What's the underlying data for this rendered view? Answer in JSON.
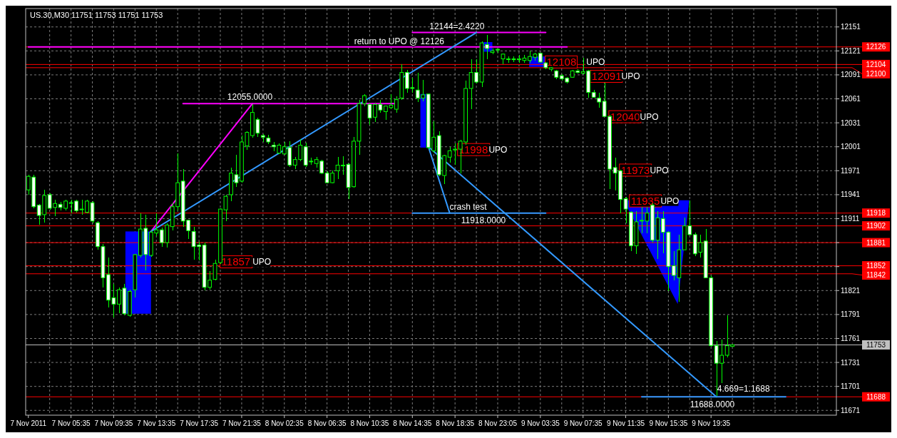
{
  "chart_data": {
    "type": "candlestick",
    "title": "US.30,M30 11751 11753 11751 11753",
    "categories": [
      "7 Nov 2011",
      null,
      null,
      null,
      null,
      null,
      null,
      null,
      "7 Nov 05:35",
      null,
      null,
      null,
      null,
      null,
      null,
      null,
      "7 Nov 09:35",
      null,
      null,
      null,
      null,
      null,
      null,
      null,
      "7 Nov 13:35",
      null,
      null,
      null,
      null,
      null,
      null,
      null,
      "7 Nov 17:35",
      null,
      null,
      null,
      null,
      null,
      null,
      null,
      "7 Nov 21:35",
      null,
      null,
      null,
      null,
      null,
      null,
      null,
      "8 Nov 02:35",
      null,
      null,
      null,
      null,
      null,
      null,
      null,
      "8 Nov 06:35",
      null,
      null,
      null,
      null,
      null,
      null,
      null,
      "8 Nov 10:35",
      null,
      null,
      null,
      null,
      null,
      null,
      null,
      "8 Nov 14:35",
      null,
      null,
      null,
      null,
      null,
      null,
      null,
      "8 Nov 18:35",
      null,
      null,
      null,
      null,
      null,
      null,
      null,
      "8 Nov 23:05",
      null,
      null,
      null,
      null,
      null,
      null,
      null,
      "9 Nov 03:35",
      null,
      null,
      null,
      null,
      null,
      null,
      null,
      "9 Nov 07:35",
      null,
      null,
      null,
      null,
      null,
      null,
      null,
      "9 Nov 11:35",
      null,
      null,
      null,
      null,
      null,
      null,
      null,
      "9 Nov 15:35",
      null,
      null,
      null,
      null,
      null,
      null,
      null,
      "9 Nov 19:35",
      null,
      null,
      null,
      null,
      null,
      null,
      null,
      null,
      null,
      null,
      null,
      null,
      null,
      null,
      null,
      null,
      null,
      null,
      null,
      null,
      null,
      null,
      null
    ],
    "ohlc": [
      [
        11947,
        11966,
        11941,
        11964
      ],
      [
        11963,
        11966,
        11924,
        11926
      ],
      [
        11928,
        11929,
        11903,
        11915
      ],
      [
        11916,
        11947,
        11906,
        11940
      ],
      [
        11941,
        11943,
        11922,
        11924
      ],
      [
        11925,
        11935,
        11914,
        11930
      ],
      [
        11929,
        11932,
        11921,
        11925
      ],
      [
        11924,
        11935,
        11921,
        11933
      ],
      [
        11931,
        11935,
        11918,
        11931
      ],
      [
        11933,
        11935,
        11919,
        11921
      ],
      [
        11923,
        11935,
        11916,
        11923
      ],
      [
        11919,
        11935,
        11918,
        11933
      ],
      [
        11931,
        11933,
        11905,
        11908
      ],
      [
        11906,
        11908,
        11872,
        11876
      ],
      [
        11876,
        11879,
        11825,
        11837
      ],
      [
        11841,
        11862,
        11800,
        11809
      ],
      [
        11812,
        11829,
        11787,
        11804
      ],
      [
        11804,
        11825,
        11793,
        11822
      ],
      [
        11824,
        11829,
        11790,
        11792
      ],
      [
        11790,
        11822,
        11788,
        11820
      ],
      [
        11822,
        11867,
        11812,
        11866
      ],
      [
        11865,
        11918,
        11862,
        11898
      ],
      [
        11899,
        11916,
        11846,
        11866
      ],
      [
        11865,
        11896,
        11863,
        11894
      ],
      [
        11893,
        11918,
        11889,
        11897
      ],
      [
        11897,
        11900,
        11876,
        11881
      ],
      [
        11881,
        11905,
        11875,
        11903
      ],
      [
        11901,
        11931,
        11896,
        11926
      ],
      [
        11926,
        11993,
        11921,
        11956
      ],
      [
        11958,
        11973,
        11901,
        11908
      ],
      [
        11909,
        11910,
        11886,
        11896
      ],
      [
        11895,
        11901,
        11860,
        11876
      ],
      [
        11878,
        11882,
        11859,
        11876
      ],
      [
        11878,
        11881,
        11821,
        11825
      ],
      [
        11825,
        11845,
        11822,
        11834
      ],
      [
        11835,
        11860,
        11834,
        11855
      ],
      [
        11856,
        11924,
        11854,
        11923
      ],
      [
        11922,
        11941,
        11908,
        11939
      ],
      [
        11941,
        11975,
        11933,
        11968
      ],
      [
        11966,
        11991,
        11951,
        11956
      ],
      [
        11958,
        12015,
        11956,
        12007
      ],
      [
        12002,
        12020,
        11997,
        12019
      ],
      [
        12015,
        12054,
        12012,
        12044
      ],
      [
        12035,
        12037,
        12013,
        12018
      ],
      [
        12015,
        12017,
        12007,
        12013
      ],
      [
        12012,
        12016,
        12004,
        12007
      ],
      [
        12003,
        12007,
        11995,
        12001
      ],
      [
        11993,
        12005,
        11992,
        12003
      ],
      [
        11992,
        12007,
        11991,
        12001
      ],
      [
        12000,
        12008,
        11976,
        11978
      ],
      [
        11978,
        11988,
        11973,
        11985
      ],
      [
        11985,
        12011,
        11983,
        12003
      ],
      [
        12001,
        12006,
        11976,
        11978
      ],
      [
        11983,
        11987,
        11978,
        11983
      ],
      [
        11980,
        11988,
        11975,
        11985
      ],
      [
        11983,
        11985,
        11967,
        11968
      ],
      [
        11968,
        11970,
        11955,
        11956
      ],
      [
        11956,
        11971,
        11955,
        11968
      ],
      [
        11971,
        11988,
        11961,
        11978
      ],
      [
        11977,
        11989,
        11966,
        11978
      ],
      [
        11979,
        11980,
        11936,
        11950
      ],
      [
        11951,
        12013,
        11950,
        12008
      ],
      [
        12008,
        12060,
        11991,
        12055
      ],
      [
        12055,
        12067,
        12052,
        12065
      ],
      [
        12054,
        12055,
        12028,
        12037
      ],
      [
        12038,
        12055,
        12032,
        12054
      ],
      [
        12054,
        12060,
        12044,
        12047
      ],
      [
        12045,
        12053,
        12035,
        12052
      ],
      [
        12050,
        12067,
        12048,
        12053
      ],
      [
        12048,
        12064,
        12044,
        12060
      ],
      [
        12062,
        12104,
        12060,
        12094
      ],
      [
        12094,
        12097,
        12069,
        12074
      ],
      [
        12075,
        12087,
        12069,
        12074
      ],
      [
        12072,
        12094,
        12057,
        12062
      ],
      [
        12062,
        12085,
        12058,
        12066
      ],
      [
        12067,
        12067,
        11998,
        12000
      ],
      [
        11996,
        12033,
        11994,
        12013
      ],
      [
        12015,
        12020,
        11964,
        11966
      ],
      [
        11965,
        11991,
        11954,
        11990
      ],
      [
        11988,
        12001,
        11981,
        11996
      ],
      [
        11997,
        12005,
        11978,
        11998
      ],
      [
        11998,
        12010,
        11968,
        12008
      ],
      [
        12007,
        12084,
        12003,
        12074
      ],
      [
        12074,
        12111,
        12048,
        12094
      ],
      [
        12094,
        12111,
        12080,
        12082
      ],
      [
        12082,
        12133,
        12076,
        12131
      ],
      [
        12129,
        12141,
        12111,
        12124
      ],
      [
        12119,
        12124,
        12117,
        12121
      ],
      [
        12123,
        12124,
        12119,
        12123
      ],
      [
        12111,
        12118,
        12104,
        12117
      ],
      [
        12111,
        12114,
        12106,
        12111
      ],
      [
        12111,
        12114,
        12107,
        12110
      ],
      [
        12110,
        12116,
        12106,
        12111
      ],
      [
        12109,
        12116,
        12106,
        12112
      ],
      [
        12109,
        12121,
        12106,
        12114
      ],
      [
        12113,
        12119,
        12109,
        12117
      ],
      [
        12118,
        12119,
        12106,
        12107
      ],
      [
        12106,
        12107,
        12098,
        12100
      ],
      [
        12098,
        12101,
        12095,
        12100
      ],
      [
        12096,
        12097,
        12086,
        12088
      ],
      [
        12090,
        12092,
        12084,
        12086
      ],
      [
        12087,
        12088,
        12080,
        12082
      ],
      [
        12088,
        12097,
        12087,
        12096
      ],
      [
        12096,
        12098,
        12093,
        12094
      ],
      [
        12093,
        12112,
        12092,
        12095
      ],
      [
        12096,
        12097,
        12062,
        12069
      ],
      [
        12069,
        12072,
        12062,
        12063
      ],
      [
        12062,
        12069,
        12050,
        12057
      ],
      [
        12058,
        12081,
        12039,
        12039
      ],
      [
        12039,
        12041,
        11948,
        11973
      ],
      [
        11975,
        11987,
        11946,
        11968
      ],
      [
        11971,
        11972,
        11918,
        11935
      ],
      [
        11936,
        11938,
        11905,
        11923
      ],
      [
        11919,
        11920,
        11870,
        11877
      ],
      [
        11877,
        11920,
        11867,
        11907
      ],
      [
        11908,
        11926,
        11893,
        11909
      ],
      [
        11908,
        11926,
        11893,
        11918
      ],
      [
        11928,
        11930,
        11881,
        11884
      ],
      [
        11884,
        11920,
        11861,
        11912
      ],
      [
        11911,
        11920,
        11868,
        11894
      ],
      [
        11894,
        11895,
        11820,
        11851
      ],
      [
        11852,
        11870,
        11834,
        11840
      ],
      [
        11837,
        11891,
        11807,
        11872
      ],
      [
        11872,
        11912,
        11872,
        11902
      ],
      [
        11902,
        11934,
        11890,
        11891
      ],
      [
        11891,
        11894,
        11864,
        11867
      ],
      [
        11869,
        11891,
        11862,
        11881
      ],
      [
        11883,
        11898,
        11837,
        11837
      ],
      [
        11837,
        11840,
        11751,
        11752
      ],
      [
        11752,
        11758,
        11689,
        11730
      ],
      [
        11730,
        11760,
        11705,
        11740
      ],
      [
        11740,
        11790,
        11737,
        11752
      ],
      [
        11751,
        11753,
        11751,
        11753
      ],
      null,
      null,
      null,
      null,
      null,
      null,
      null,
      null,
      null,
      null,
      null,
      null,
      null,
      null,
      null,
      null,
      null,
      null,
      null
    ],
    "series": [
      {
        "type": "line",
        "color": "#ff00ff",
        "values": [
          null,
          null,
          null,
          null,
          null,
          null,
          null,
          null,
          null,
          null,
          null,
          null,
          null,
          null,
          null,
          null,
          null,
          null,
          null,
          null,
          null,
          null,
          null,
          11895,
          null,
          null,
          null,
          null,
          null,
          null,
          null,
          null,
          null,
          null,
          null,
          null,
          null,
          null,
          null,
          null,
          null,
          null,
          12055,
          null,
          null,
          null,
          null,
          null,
          null,
          null,
          null,
          null,
          null,
          null,
          null,
          null,
          null,
          null,
          null,
          null,
          null,
          null,
          null,
          null,
          null,
          null,
          null,
          null,
          null,
          null,
          null,
          null,
          null,
          null,
          null,
          null,
          null,
          null,
          null,
          null,
          null,
          null,
          null,
          null,
          null,
          null,
          null,
          null,
          null,
          null,
          null,
          null,
          null,
          null,
          null,
          null,
          null,
          null,
          null,
          null,
          null,
          null,
          null,
          null,
          null,
          null,
          null,
          null,
          null,
          null,
          null,
          null,
          null,
          null,
          null,
          null,
          null,
          null,
          null,
          null,
          null,
          null,
          null,
          null,
          null,
          null,
          null,
          null,
          null,
          null,
          null,
          null,
          null,
          null,
          null,
          null,
          null,
          null,
          null,
          null,
          null,
          null,
          null,
          null,
          null,
          null,
          null,
          null,
          null,
          null,
          null,
          null
        ]
      },
      {
        "type": "line",
        "color": "#ff00ff",
        "values": [
          null,
          null,
          null,
          null,
          null,
          null,
          null,
          null,
          null,
          null,
          null,
          null,
          null,
          null,
          null,
          null,
          null,
          null,
          null,
          null,
          null,
          null,
          null,
          null,
          null,
          null,
          null,
          null,
          null,
          12055,
          null,
          null,
          null,
          null,
          null,
          null,
          null,
          null,
          null,
          null,
          null,
          null,
          null,
          null,
          null,
          null,
          null,
          null,
          null,
          null,
          null,
          null,
          null,
          null,
          null,
          null,
          null,
          null,
          null,
          null,
          null,
          null,
          null,
          null,
          null,
          null,
          null,
          null,
          null,
          12055,
          null,
          null,
          null,
          null,
          null,
          null,
          null,
          null,
          null,
          null,
          null,
          null,
          null,
          null,
          null,
          null,
          null,
          null,
          null,
          null,
          null,
          null,
          null,
          null,
          null,
          null,
          null,
          null,
          null,
          null,
          null,
          null,
          null,
          null,
          null,
          null,
          null,
          null,
          null,
          null,
          null,
          null,
          null,
          null,
          null,
          null,
          null,
          null,
          null,
          null,
          null,
          null,
          null,
          null,
          null,
          null,
          null,
          null,
          null,
          null,
          null,
          null,
          null,
          null,
          null,
          null,
          null,
          null,
          null,
          null,
          null,
          null,
          null,
          null,
          null,
          null,
          null,
          null,
          null,
          null,
          null,
          null
        ]
      },
      {
        "type": "line",
        "color": "#ff00ff",
        "values": [
          null,
          null,
          null,
          null,
          null,
          null,
          null,
          null,
          null,
          null,
          null,
          null,
          null,
          null,
          null,
          null,
          null,
          null,
          null,
          null,
          null,
          null,
          null,
          null,
          null,
          null,
          null,
          null,
          null,
          null,
          null,
          null,
          null,
          null,
          null,
          null,
          null,
          null,
          null,
          null,
          null,
          null,
          null,
          null,
          null,
          null,
          null,
          null,
          null,
          null,
          null,
          null,
          null,
          null,
          null,
          null,
          null,
          null,
          null,
          null,
          null,
          null,
          null,
          null,
          null,
          null,
          null,
          null,
          null,
          null,
          null,
          null,
          12144,
          null,
          null,
          null,
          null,
          null,
          null,
          null,
          null,
          null,
          null,
          null,
          null,
          null,
          null,
          null,
          null,
          null,
          null,
          null,
          null,
          null,
          null,
          null,
          null,
          12144,
          null,
          null,
          null,
          null,
          null,
          null,
          null,
          null,
          null,
          null,
          null,
          null,
          null,
          null,
          null,
          null,
          null,
          null,
          null,
          null,
          null,
          null,
          null,
          null,
          null,
          null,
          null,
          null,
          null,
          null,
          null,
          null,
          null,
          null,
          null,
          null,
          null,
          null,
          null,
          null,
          null,
          null,
          null,
          null,
          null,
          null,
          null,
          null,
          null,
          null,
          null,
          null,
          null,
          null
        ]
      },
      {
        "type": "line",
        "color": "#ff00ff",
        "values": [
          12126,
          null,
          null,
          null,
          null,
          null,
          null,
          null,
          null,
          null,
          null,
          null,
          null,
          null,
          null,
          null,
          null,
          null,
          null,
          null,
          null,
          null,
          null,
          null,
          null,
          null,
          null,
          null,
          null,
          null,
          null,
          null,
          null,
          null,
          null,
          null,
          null,
          null,
          null,
          null,
          null,
          null,
          null,
          null,
          null,
          null,
          null,
          null,
          null,
          null,
          null,
          null,
          null,
          null,
          null,
          null,
          null,
          null,
          null,
          null,
          null,
          null,
          null,
          null,
          null,
          null,
          null,
          null,
          null,
          null,
          null,
          null,
          null,
          null,
          null,
          null,
          null,
          null,
          null,
          null,
          null,
          null,
          null,
          null,
          null,
          null,
          null,
          null,
          null,
          null,
          null,
          null,
          null,
          null,
          null,
          null,
          null,
          null,
          null,
          null,
          null,
          12126,
          null,
          null,
          null,
          null,
          null,
          null,
          null,
          null,
          null,
          null,
          null,
          null,
          null,
          null,
          null,
          null,
          null,
          null,
          null,
          null,
          null,
          null,
          null,
          null,
          null,
          null,
          null,
          null,
          null,
          null,
          null,
          null,
          null,
          null,
          null,
          null,
          null,
          null,
          null,
          null,
          null,
          null,
          null,
          null,
          null,
          null,
          null,
          null,
          null,
          null
        ]
      },
      {
        "type": "line",
        "color": "#3399ff",
        "values": [
          null,
          null,
          null,
          null,
          null,
          null,
          null,
          null,
          null,
          null,
          null,
          null,
          null,
          null,
          null,
          null,
          null,
          null,
          null,
          null,
          null,
          null,
          null,
          11895,
          null,
          null,
          null,
          null,
          null,
          null,
          null,
          null,
          null,
          null,
          null,
          null,
          null,
          null,
          null,
          null,
          null,
          null,
          null,
          null,
          null,
          null,
          null,
          null,
          null,
          null,
          null,
          null,
          null,
          null,
          null,
          null,
          null,
          null,
          null,
          null,
          null,
          null,
          null,
          null,
          null,
          null,
          null,
          null,
          null,
          null,
          null,
          null,
          null,
          null,
          null,
          null,
          null,
          null,
          null,
          null,
          null,
          null,
          null,
          null,
          12144,
          null,
          null,
          null,
          null,
          null,
          null,
          null,
          null,
          null,
          null,
          null,
          null,
          null,
          null,
          null,
          null,
          null,
          null,
          null,
          null,
          null,
          null,
          null,
          null,
          null,
          null,
          null,
          null,
          null,
          null,
          null,
          null,
          null,
          null,
          null,
          null,
          null,
          null,
          null,
          null,
          null,
          null,
          null,
          null,
          null,
          null,
          null,
          null,
          null,
          null,
          null,
          null,
          null,
          null,
          null,
          null,
          null,
          null,
          null,
          null,
          null,
          null,
          null,
          null,
          null,
          null,
          null
        ]
      },
      {
        "type": "line",
        "color": "#3399ff",
        "values": [
          null,
          null,
          null,
          null,
          null,
          null,
          null,
          null,
          null,
          null,
          null,
          null,
          null,
          null,
          null,
          null,
          null,
          null,
          null,
          null,
          null,
          null,
          null,
          null,
          null,
          null,
          null,
          null,
          null,
          null,
          null,
          null,
          null,
          null,
          null,
          null,
          null,
          null,
          null,
          null,
          null,
          null,
          null,
          null,
          null,
          null,
          null,
          null,
          null,
          null,
          null,
          null,
          null,
          null,
          null,
          null,
          null,
          null,
          null,
          null,
          null,
          null,
          null,
          null,
          null,
          null,
          null,
          null,
          null,
          null,
          null,
          null,
          null,
          null,
          null,
          12001,
          null,
          null,
          null,
          null,
          null,
          null,
          null,
          null,
          null,
          null,
          null,
          null,
          null,
          null,
          null,
          null,
          null,
          null,
          null,
          null,
          null,
          null,
          null,
          null,
          null,
          null,
          null,
          null,
          null,
          null,
          null,
          null,
          null,
          null,
          null,
          null,
          null,
          null,
          null,
          null,
          null,
          null,
          null,
          null,
          null,
          null,
          null,
          null,
          null,
          null,
          null,
          null,
          null,
          11688,
          null,
          null,
          null,
          null,
          null,
          null,
          null,
          null,
          null,
          null,
          null,
          null,
          null,
          null,
          null,
          null,
          null,
          null,
          null,
          null,
          null,
          null
        ]
      },
      {
        "type": "line",
        "color": "#3399ff",
        "values": [
          null,
          null,
          null,
          null,
          null,
          null,
          null,
          null,
          null,
          null,
          null,
          null,
          null,
          null,
          null,
          null,
          null,
          null,
          null,
          null,
          null,
          null,
          null,
          null,
          null,
          null,
          null,
          null,
          null,
          null,
          null,
          null,
          null,
          null,
          null,
          null,
          null,
          null,
          null,
          null,
          null,
          null,
          null,
          null,
          null,
          null,
          null,
          null,
          null,
          null,
          null,
          null,
          null,
          null,
          null,
          null,
          null,
          null,
          null,
          null,
          null,
          null,
          null,
          null,
          null,
          null,
          null,
          null,
          null,
          null,
          null,
          null,
          null,
          null,
          null,
          12001,
          null,
          null,
          null,
          11918,
          null,
          null,
          null,
          null,
          null,
          null,
          null,
          null,
          null,
          null,
          null,
          null,
          null,
          null,
          null,
          null,
          null,
          null,
          null,
          null,
          null,
          null,
          null,
          null,
          null,
          null,
          null,
          null,
          null,
          null,
          null,
          null,
          null,
          null,
          null,
          null,
          null,
          null,
          null,
          null,
          null,
          null,
          null,
          null,
          null,
          null,
          null,
          null,
          null,
          null,
          null,
          null,
          null,
          null,
          null,
          null,
          null,
          null,
          null,
          null,
          null,
          null,
          null,
          null,
          null,
          null,
          null,
          null,
          null,
          null,
          null,
          null
        ]
      },
      {
        "type": "line",
        "color": "#3399ff",
        "values": [
          null,
          null,
          null,
          null,
          null,
          null,
          null,
          null,
          null,
          null,
          null,
          null,
          null,
          null,
          null,
          null,
          null,
          null,
          null,
          null,
          null,
          null,
          null,
          null,
          null,
          null,
          null,
          null,
          null,
          null,
          null,
          null,
          null,
          null,
          null,
          null,
          null,
          null,
          null,
          null,
          null,
          null,
          null,
          null,
          null,
          null,
          null,
          null,
          null,
          null,
          null,
          null,
          null,
          null,
          null,
          null,
          null,
          null,
          null,
          null,
          null,
          null,
          null,
          null,
          null,
          null,
          null,
          null,
          null,
          null,
          null,
          null,
          11918,
          null,
          null,
          null,
          null,
          null,
          null,
          null,
          null,
          null,
          null,
          null,
          null,
          null,
          null,
          null,
          null,
          null,
          null,
          null,
          null,
          null,
          null,
          null,
          null,
          11918,
          null,
          null,
          null,
          null,
          null,
          null,
          null,
          null,
          null,
          null,
          null,
          null,
          null,
          null,
          null,
          null,
          null,
          null,
          null,
          null,
          null,
          null,
          null,
          null,
          null,
          null,
          null,
          null,
          null,
          null,
          null,
          null,
          null,
          null,
          null,
          null,
          null,
          null,
          null,
          null,
          null,
          null,
          null,
          null,
          null,
          null,
          null,
          null,
          null,
          null,
          null,
          null,
          null,
          null
        ]
      },
      {
        "type": "line",
        "color": "#3399ff",
        "values": [
          null,
          null,
          null,
          null,
          null,
          null,
          null,
          null,
          null,
          null,
          null,
          null,
          null,
          null,
          null,
          null,
          null,
          null,
          null,
          null,
          null,
          null,
          null,
          null,
          null,
          null,
          null,
          null,
          null,
          null,
          null,
          null,
          null,
          null,
          null,
          null,
          null,
          null,
          null,
          null,
          null,
          null,
          null,
          null,
          null,
          null,
          null,
          null,
          null,
          null,
          null,
          null,
          null,
          null,
          null,
          null,
          null,
          null,
          null,
          null,
          null,
          null,
          null,
          null,
          null,
          null,
          null,
          null,
          null,
          null,
          null,
          null,
          null,
          null,
          null,
          null,
          null,
          null,
          null,
          null,
          null,
          null,
          null,
          null,
          null,
          null,
          null,
          null,
          null,
          null,
          null,
          null,
          null,
          null,
          null,
          null,
          null,
          null,
          null,
          null,
          null,
          null,
          null,
          null,
          null,
          null,
          null,
          null,
          null,
          null,
          null,
          null,
          null,
          null,
          null,
          11688,
          null,
          null,
          null,
          null,
          null,
          null,
          null,
          null,
          null,
          null,
          null,
          null,
          null,
          null,
          null,
          null,
          null,
          null,
          null,
          null,
          null,
          null,
          null,
          null,
          null,
          null,
          11688,
          null,
          null,
          null,
          null,
          null,
          null,
          null,
          null,
          null
        ]
      }
    ],
    "ylim": [
      11665,
      12174
    ],
    "yticks": [
      12151,
      12121,
      12091,
      12061,
      12031,
      12001,
      11971,
      11941,
      11911,
      {
        "value": 11881,
        "label": null
      },
      {
        "value": 11851,
        "label": null
      },
      11821,
      11791,
      11761,
      11731,
      11701,
      11671
    ],
    "grid": true,
    "ref_lines": [
      {
        "axis": "y",
        "value": 12126,
        "label": "12126",
        "color": "#ff0000"
      },
      {
        "axis": "y",
        "value": 12104,
        "label": "12104",
        "color": "#ff0000"
      },
      {
        "axis": "y",
        "value": 12100,
        "label": "12100",
        "color": "#ff0000"
      },
      {
        "axis": "y",
        "value": 11918,
        "label": "11918",
        "color": "#ff0000"
      },
      {
        "axis": "y",
        "value": 11902,
        "label": "11902",
        "color": "#ff0000"
      },
      {
        "axis": "y",
        "value": 11881,
        "label": "11881",
        "color": "#ff0000"
      },
      {
        "axis": "y",
        "value": 11852,
        "label": "11852",
        "color": "#ff0000"
      },
      {
        "axis": "y",
        "value": 11842,
        "label": "11842",
        "color": "#ff0000"
      },
      {
        "axis": "y",
        "value": 11753,
        "label": "11753",
        "color": "#c0c0c0"
      },
      {
        "axis": "y",
        "value": 11688,
        "label": "11688",
        "color": "#ff0000"
      }
    ],
    "annotations": [
      {
        "text": "12144=2.4220",
        "y": 12144
      },
      {
        "text": "return to UPO @ 12126",
        "y": 12126
      },
      {
        "text": "12055.0000",
        "y": 12055
      },
      {
        "text": "crash test",
        "y": 11918
      },
      {
        "text": "11918.0000",
        "y": 11918
      },
      {
        "text": "4.669=1.1688",
        "y": 11688
      },
      {
        "text": "11688.0000",
        "y": 11688
      },
      "11857",
      "UPO",
      "11998",
      "UPO",
      "12108",
      "UPO",
      "12091",
      "UPO",
      "12040",
      "UPO",
      "11973",
      "UPO",
      "11935",
      "UPO"
    ]
  }
}
